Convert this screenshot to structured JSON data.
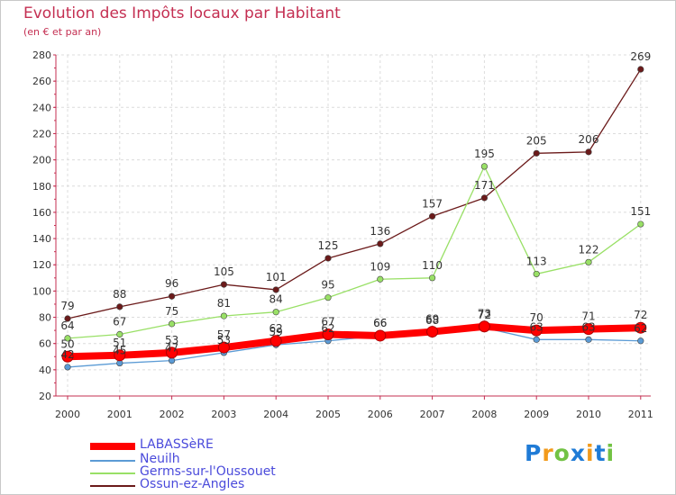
{
  "header": {
    "title": "Evolution des Impôts locaux par Habitant",
    "subtitle": "(en € et par an)"
  },
  "chart_data": {
    "type": "line",
    "title": "Evolution des Impôts locaux par Habitant",
    "subtitle": "(en € et par an)",
    "xlabel": "",
    "ylabel": "",
    "ylim": [
      20,
      280
    ],
    "ytick_step": 20,
    "grid": true,
    "categories": [
      "2000",
      "2001",
      "2002",
      "2003",
      "2004",
      "2005",
      "2006",
      "2007",
      "2008",
      "2009",
      "2010",
      "2011"
    ],
    "series": [
      {
        "name": "LABASSèRE",
        "color": "#ff0000",
        "values": [
          50,
          51,
          53,
          57,
          62,
          67,
          66,
          69,
          73,
          70,
          71,
          72
        ],
        "labels": [
          "50",
          "51",
          "53",
          "57",
          "62",
          "67",
          "66",
          "69",
          "73",
          "70",
          "71",
          "72"
        ]
      },
      {
        "name": "Neuilh",
        "color": "#5b9bd5",
        "values": [
          42,
          45,
          47,
          53,
          59,
          62,
          66,
          68,
          72,
          63,
          63,
          62
        ],
        "labels": [
          "42",
          "45",
          "47",
          "53",
          "59",
          "62",
          "66",
          "68",
          "72",
          "63",
          "63",
          "62"
        ]
      },
      {
        "name": "Germs-sur-l'Oussouet",
        "color": "#99e066",
        "values": [
          64,
          67,
          75,
          81,
          84,
          95,
          109,
          110,
          195,
          113,
          122,
          151
        ],
        "labels": [
          "64",
          "67",
          "75",
          "81",
          "84",
          "95",
          "109",
          "110",
          "195",
          "113",
          "122",
          "151"
        ]
      },
      {
        "name": "Ossun-ez-Angles",
        "color": "#6b1a1a",
        "values": [
          79,
          88,
          96,
          105,
          101,
          125,
          136,
          157,
          171,
          205,
          206,
          269
        ],
        "labels": [
          "79",
          "88",
          "96",
          "105",
          "101",
          "125",
          "136",
          "157",
          "171",
          "205",
          "206",
          "269"
        ]
      }
    ]
  },
  "logo": {
    "letters": [
      "P",
      "r",
      "o",
      "x",
      "i",
      "t",
      "i"
    ],
    "colors": [
      "#1f7bd6",
      "#f29a1b",
      "#72c244",
      "#1f7bd6",
      "#f29a1b",
      "#1f7bd6",
      "#72c244"
    ]
  }
}
